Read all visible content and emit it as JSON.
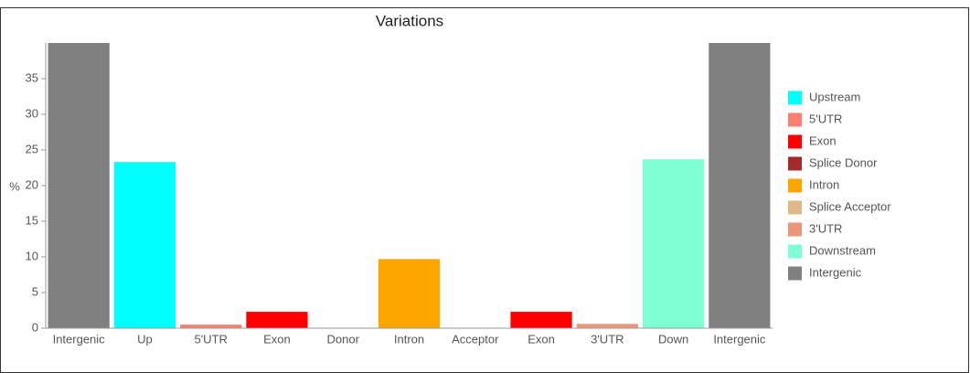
{
  "chart_data": {
    "type": "bar",
    "title": "Variations",
    "y_label": "%",
    "categories": [
      "Intergenic",
      "Up",
      "5'UTR",
      "Exon",
      "Donor",
      "Intron",
      "Acceptor",
      "Exon",
      "3'UTR",
      "Down",
      "Intergenic"
    ],
    "values": [
      40,
      23.3,
      0.5,
      2.3,
      0,
      9.7,
      0,
      2.3,
      0.6,
      23.7,
      40
    ],
    "colors": [
      "#808080",
      "#00ffff",
      "#fa8072",
      "#ff0000",
      "#a52a2a",
      "#ffa500",
      "#deb887",
      "#ff0000",
      "#e9967a",
      "#7fffd4",
      "#808080"
    ],
    "ylim": [
      0,
      40
    ],
    "yticks": [
      0,
      5,
      10,
      15,
      20,
      25,
      30,
      35
    ],
    "grid": false,
    "legend_position": "right",
    "legend": [
      {
        "name": "Upstream",
        "color": "#00ffff"
      },
      {
        "name": "5'UTR",
        "color": "#fa8072"
      },
      {
        "name": "Exon",
        "color": "#ff0000"
      },
      {
        "name": "Splice Donor",
        "color": "#a52a2a"
      },
      {
        "name": "Intron",
        "color": "#ffa500"
      },
      {
        "name": "Splice Acceptor",
        "color": "#deb887"
      },
      {
        "name": "3'UTR",
        "color": "#e9967a"
      },
      {
        "name": "Downstream",
        "color": "#7fffd4"
      },
      {
        "name": "Intergenic",
        "color": "#808080"
      }
    ]
  }
}
